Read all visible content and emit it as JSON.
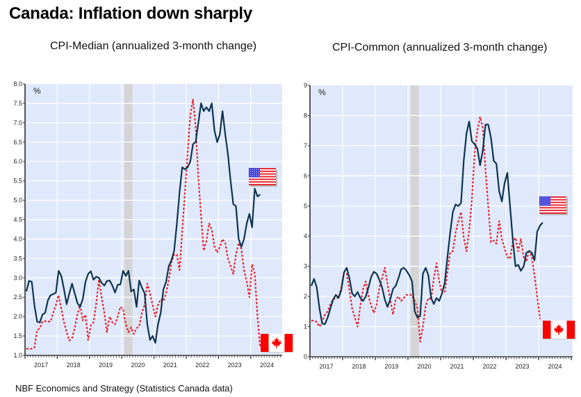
{
  "page": {
    "title": "Canada: Inflation down sharply",
    "footer": "NBF Economics and Strategy (Statistics Canada data)"
  },
  "colors": {
    "us_line": "#0d3350",
    "canada_line": "#e8202a",
    "plot_bg": "#dfe9fb",
    "grid": "#ffffff",
    "recession_band": "#d4d4d4"
  },
  "chart_data": [
    {
      "type": "line",
      "title": "CPI-Median (annualized 3-month change)",
      "ylabel": "%",
      "xlabel": "",
      "ylim": [
        1.0,
        8.0
      ],
      "yticks": [
        "1.0",
        "1.5",
        "2.0",
        "2.5",
        "3.0",
        "3.5",
        "4.0",
        "4.5",
        "5.0",
        "5.5",
        "6.0",
        "6.5",
        "7.0",
        "7.5",
        "8.0"
      ],
      "xticks": [
        "2017",
        "2018",
        "2019",
        "2020",
        "2021",
        "2022",
        "2023",
        "2024"
      ],
      "x_start": "2017-01",
      "frequency": "monthly",
      "grid": true,
      "shaded_period": {
        "label": "recession",
        "from": "2020-02",
        "to": "2020-04"
      },
      "series": [
        {
          "name": "United States",
          "legend_icon": "us-flag",
          "style": "solid",
          "values": [
            2.65,
            2.92,
            2.9,
            2.3,
            1.87,
            1.85,
            2.05,
            2.1,
            2.42,
            2.55,
            2.58,
            2.62,
            3.18,
            3.05,
            2.7,
            2.32,
            2.6,
            2.85,
            2.6,
            2.35,
            2.25,
            2.45,
            2.9,
            3.1,
            3.17,
            2.95,
            3.03,
            3.0,
            2.87,
            2.8,
            2.92,
            2.93,
            2.8,
            2.62,
            2.82,
            2.83,
            3.18,
            3.05,
            3.18,
            2.65,
            2.7,
            2.25,
            2.93,
            2.75,
            2.6,
            1.8,
            1.4,
            1.5,
            1.32,
            1.8,
            2.1,
            2.7,
            2.9,
            3.3,
            3.45,
            3.7,
            4.4,
            5.2,
            5.85,
            5.8,
            5.85,
            6.0,
            6.45,
            6.5,
            7.0,
            7.5,
            7.3,
            7.4,
            7.3,
            7.5,
            6.8,
            6.5,
            6.7,
            7.3,
            6.7,
            6.2,
            5.5,
            4.9,
            4.85,
            4.0,
            3.8,
            4.0,
            4.4,
            4.65,
            4.3,
            5.3,
            5.1,
            5.15
          ]
        },
        {
          "name": "Canada",
          "legend_icon": "canada-flag",
          "style": "dashed",
          "values": [
            1.17,
            1.17,
            1.17,
            1.2,
            1.65,
            1.7,
            1.87,
            1.88,
            1.87,
            1.87,
            2.1,
            2.3,
            2.55,
            2.2,
            1.85,
            1.6,
            1.38,
            1.45,
            1.7,
            2.05,
            2.3,
            1.9,
            2.05,
            1.4,
            1.78,
            1.85,
            2.35,
            2.95,
            2.5,
            2.1,
            1.6,
            2.0,
            1.85,
            1.8,
            2.0,
            2.25,
            2.2,
            1.8,
            1.6,
            1.72,
            1.55,
            1.7,
            1.75,
            2.1,
            2.3,
            2.85,
            2.6,
            2.3,
            2.0,
            2.3,
            2.45,
            2.4,
            2.6,
            2.95,
            3.4,
            3.6,
            3.6,
            3.2,
            4.2,
            5.2,
            6.2,
            7.2,
            7.6,
            6.9,
            5.6,
            4.6,
            3.7,
            3.95,
            4.4,
            4.25,
            3.8,
            3.65,
            3.8,
            4.0,
            3.9,
            3.5,
            3.3,
            3.1,
            3.6,
            3.9,
            3.75,
            3.2,
            2.9,
            2.5,
            3.35,
            3.1,
            2.0,
            1.2
          ]
        }
      ]
    },
    {
      "type": "line",
      "title": "CPI-Common (annualized 3-month change)",
      "ylabel": "%",
      "xlabel": "",
      "ylim": [
        0,
        9
      ],
      "yticks": [
        "0",
        "1",
        "2",
        "3",
        "4",
        "5",
        "6",
        "7",
        "8",
        "9"
      ],
      "xticks": [
        "2017",
        "2018",
        "2019",
        "2020",
        "2021",
        "2022",
        "2023",
        "2024"
      ],
      "x_start": "2017-01",
      "frequency": "monthly",
      "grid": true,
      "shaded_period": {
        "label": "recession",
        "from": "2020-02",
        "to": "2020-04"
      },
      "series": [
        {
          "name": "United States",
          "legend_icon": "us-flag",
          "style": "solid",
          "values": [
            2.35,
            2.58,
            2.3,
            1.6,
            1.1,
            1.08,
            1.3,
            1.6,
            1.9,
            2.05,
            1.95,
            2.2,
            2.8,
            2.95,
            2.6,
            2.1,
            2.0,
            2.15,
            1.95,
            1.85,
            2.0,
            2.3,
            2.65,
            2.82,
            2.75,
            2.55,
            2.3,
            1.9,
            1.65,
            1.9,
            2.25,
            2.35,
            2.6,
            2.9,
            2.95,
            2.85,
            2.7,
            2.5,
            1.5,
            1.3,
            1.35,
            2.75,
            2.95,
            2.7,
            1.95,
            1.75,
            1.95,
            1.85,
            2.1,
            2.45,
            3.3,
            4.1,
            4.8,
            5.05,
            5.0,
            5.1,
            6.5,
            7.4,
            7.8,
            7.15,
            7.05,
            6.9,
            6.35,
            6.85,
            7.7,
            7.7,
            7.25,
            6.5,
            6.4,
            5.5,
            5.15,
            5.75,
            6.1,
            5.0,
            3.9,
            3.0,
            3.05,
            2.85,
            3.0,
            3.45,
            3.5,
            3.45,
            3.2,
            4.15,
            4.35,
            4.45
          ]
        },
        {
          "name": "Canada",
          "legend_icon": "canada-flag",
          "style": "dashed",
          "values": [
            1.2,
            1.2,
            1.15,
            1.0,
            1.15,
            1.4,
            1.5,
            1.75,
            1.9,
            1.95,
            1.95,
            2.3,
            2.8,
            2.75,
            2.2,
            1.6,
            1.3,
            1.0,
            1.7,
            2.25,
            2.5,
            2.0,
            1.7,
            1.45,
            1.75,
            2.3,
            2.6,
            2.95,
            2.4,
            1.9,
            1.4,
            1.9,
            2.0,
            1.85,
            1.95,
            2.05,
            2.05,
            2.05,
            1.85,
            1.6,
            0.5,
            1.0,
            1.7,
            1.95,
            1.9,
            2.6,
            3.1,
            2.5,
            2.1,
            2.15,
            2.8,
            3.45,
            3.5,
            4.1,
            4.5,
            4.8,
            3.95,
            3.5,
            4.2,
            5.2,
            6.8,
            7.5,
            7.95,
            7.6,
            6.2,
            5.0,
            3.8,
            3.85,
            3.75,
            4.5,
            3.9,
            3.6,
            3.3,
            3.25,
            3.8,
            3.95,
            3.5,
            3.9,
            3.3,
            3.15,
            3.55,
            3.3,
            2.7,
            2.0,
            1.25
          ]
        }
      ]
    }
  ]
}
